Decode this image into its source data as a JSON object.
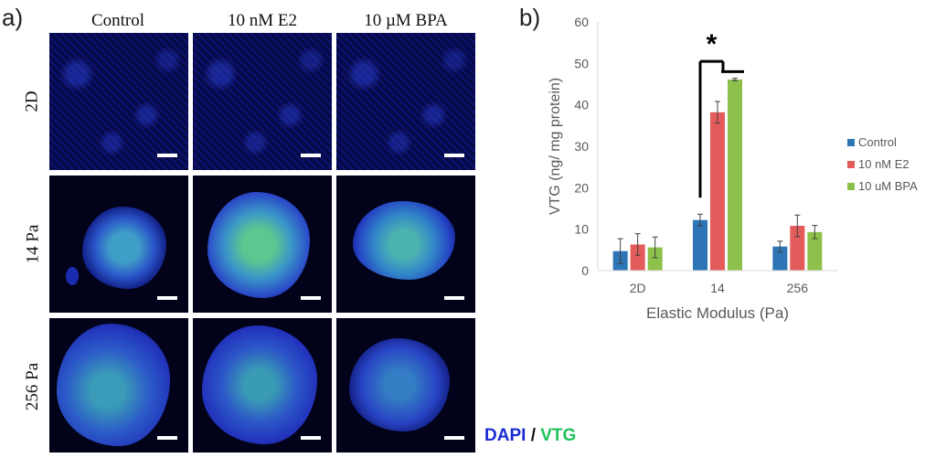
{
  "panel_a": {
    "label": "a)",
    "columns": [
      "Control",
      "10 nM E2",
      "10 µM BPA"
    ],
    "rows": [
      "2D",
      "14 Pa",
      "256 Pa"
    ],
    "legend": {
      "dapi": "DAPI",
      "separator": "/",
      "vtg": "VTG"
    },
    "colors": {
      "dapi": "#1a2bd6",
      "vtg": "#1fc25a"
    }
  },
  "panel_b": {
    "label": "b)"
  },
  "chart_data": {
    "type": "bar",
    "title": "",
    "xlabel": "Elastic Modulus (Pa)",
    "ylabel": "VTG (ng/ mg protein)",
    "categories": [
      "2D",
      "14",
      "256"
    ],
    "ylim": [
      0,
      60
    ],
    "yticks": [
      0,
      10,
      20,
      30,
      40,
      50,
      60
    ],
    "legend_position": "right",
    "series": [
      {
        "name": "Control",
        "color": "#2e75b6",
        "values": [
          4.7,
          12.2,
          5.8
        ],
        "errors": [
          3.0,
          1.4,
          1.3
        ]
      },
      {
        "name": "10 nM E2",
        "color": "#e45b5b",
        "values": [
          6.3,
          38.2,
          10.8
        ],
        "errors": [
          2.6,
          2.6,
          2.6
        ]
      },
      {
        "name": "10 uM BPA",
        "color": "#8dc14b",
        "values": [
          5.6,
          46.1,
          9.3
        ],
        "errors": [
          2.5,
          0.3,
          1.6
        ]
      }
    ],
    "annotation": {
      "text": "*"
    }
  }
}
